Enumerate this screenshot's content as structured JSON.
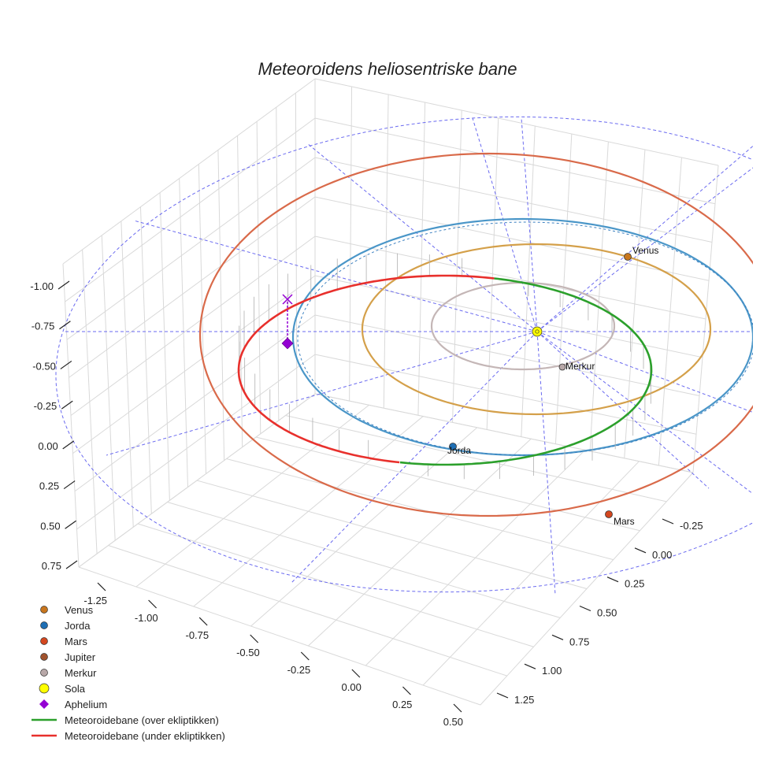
{
  "chart_data": {
    "type": "scatter",
    "title": "Meteoroidens heliosentriske bane",
    "xlabel": "",
    "ylabel": "",
    "zlabel": "",
    "axes": {
      "x": {
        "ticks": [
          "-1.25",
          "-1.00",
          "-0.75",
          "-0.50",
          "-0.25",
          "0.00",
          "0.25",
          "0.50"
        ]
      },
      "y": {
        "ticks": [
          "-0.25",
          "0.00",
          "0.25",
          "0.50",
          "0.75",
          "1.00",
          "1.25"
        ]
      },
      "z": {
        "ticks": [
          "-1.00",
          "-0.75",
          "-0.50",
          "-0.25",
          "0.00",
          "0.25",
          "0.50",
          "0.75"
        ]
      }
    },
    "grid": true,
    "legend_position": "bottom-left",
    "orbits": [
      {
        "name": "Merkur",
        "color": "#c4b6b6"
      },
      {
        "name": "Venus",
        "color": "#d4a04a"
      },
      {
        "name": "Jorda",
        "color": "#4a96c8"
      },
      {
        "name": "Mars",
        "color": "#d96a4a"
      }
    ],
    "points": [
      {
        "name": "Venus",
        "label": "Venus",
        "color": "#c8761e"
      },
      {
        "name": "Jorda",
        "label": "Jorda",
        "color": "#1f6fb4"
      },
      {
        "name": "Mars",
        "label": "Mars",
        "color": "#d4471f"
      },
      {
        "name": "Merkur",
        "label": "Merkur",
        "color": "#b8a8a8"
      },
      {
        "name": "Sola",
        "label": "",
        "color": "#ffff00"
      }
    ],
    "meteoroid": {
      "above_color": "#2ca02c",
      "below_color": "#e8302c",
      "aphelion_color": "#9400d3"
    },
    "legend": [
      {
        "label": "Venus",
        "marker": "circle",
        "color": "#c8761e"
      },
      {
        "label": "Jorda",
        "marker": "circle",
        "color": "#1f6fb4"
      },
      {
        "label": "Mars",
        "marker": "circle",
        "color": "#d4471f"
      },
      {
        "label": "Jupiter",
        "marker": "circle",
        "color": "#a0522d"
      },
      {
        "label": "Merkur",
        "marker": "circle",
        "color": "#b8a8a8"
      },
      {
        "label": "Sola",
        "marker": "circle-large",
        "color": "#ffff00"
      },
      {
        "label": "Aphelium",
        "marker": "diamond",
        "color": "#9400d3"
      },
      {
        "label": "Meteoroidebane (over ekliptikken)",
        "marker": "line",
        "color": "#2ca02c"
      },
      {
        "label": "Meteoroidebane (under ekliptikken)",
        "marker": "line",
        "color": "#e8302c"
      }
    ]
  }
}
